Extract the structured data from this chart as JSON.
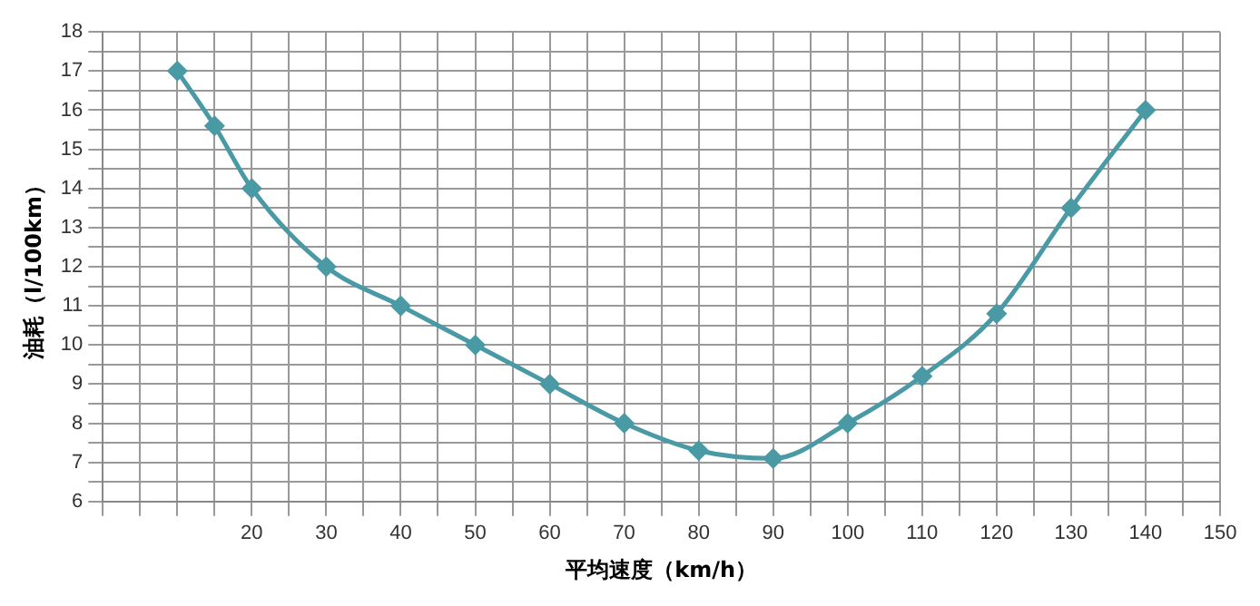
{
  "chart_data": {
    "type": "line",
    "xlabel": "平均速度（km/h）",
    "ylabel": "油耗（l/100km）",
    "x": [
      10,
      15,
      20,
      30,
      40,
      50,
      60,
      70,
      80,
      90,
      100,
      110,
      120,
      130,
      140
    ],
    "series": [
      {
        "color": "#4a9aa6",
        "values": [
          17,
          15.6,
          14,
          12,
          11,
          10,
          9,
          8,
          7.3,
          7.1,
          8,
          9.2,
          10.8,
          13.5,
          16
        ]
      }
    ],
    "xlim": [
      0,
      150
    ],
    "xticks": [
      {
        "value": 0,
        "label": null
      },
      {
        "value": 5,
        "label": null
      },
      {
        "value": 10,
        "label": null
      },
      {
        "value": 15,
        "label": null
      },
      20,
      {
        "value": 25,
        "label": null
      },
      30,
      {
        "value": 35,
        "label": null
      },
      40,
      {
        "value": 45,
        "label": null
      },
      50,
      {
        "value": 55,
        "label": null
      },
      60,
      {
        "value": 65,
        "label": null
      },
      70,
      {
        "value": 75,
        "label": null
      },
      80,
      {
        "value": 85,
        "label": null
      },
      90,
      {
        "value": 95,
        "label": null
      },
      100,
      {
        "value": 105,
        "label": null
      },
      110,
      {
        "value": 115,
        "label": null
      },
      120,
      {
        "value": 125,
        "label": null
      },
      130,
      {
        "value": 135,
        "label": null
      },
      140,
      {
        "value": 145,
        "label": null
      },
      150
    ],
    "ylim": [
      6,
      18
    ],
    "yticks": [
      6,
      {
        "value": 6.5,
        "label": null
      },
      7,
      {
        "value": 7.5,
        "label": null
      },
      8,
      {
        "value": 8.5,
        "label": null
      },
      9,
      {
        "value": 9.5,
        "label": null
      },
      10,
      {
        "value": 10.5,
        "label": null
      },
      11,
      {
        "value": 11.5,
        "label": null
      },
      12,
      {
        "value": 12.5,
        "label": null
      },
      13,
      {
        "value": 13.5,
        "label": null
      },
      14,
      {
        "value": 14.5,
        "label": null
      },
      15,
      {
        "value": 15.5,
        "label": null
      },
      16,
      {
        "value": 16.5,
        "label": null
      },
      17,
      {
        "value": 17.5,
        "label": null
      },
      18
    ],
    "grid": true,
    "marker": "diamond",
    "line_style": "solid",
    "legend": false
  }
}
